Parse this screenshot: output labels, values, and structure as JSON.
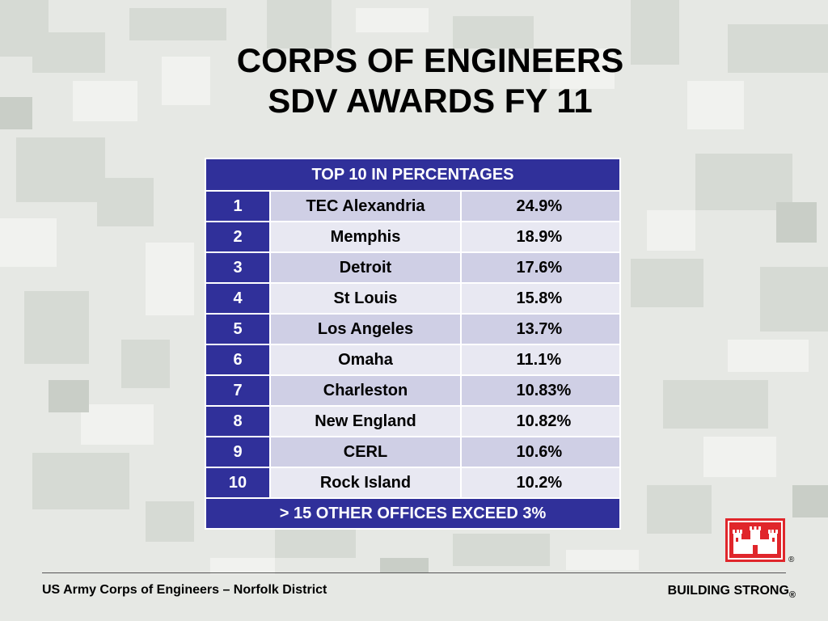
{
  "slide": {
    "title_line1": "CORPS OF ENGINEERS",
    "title_line2": "SDV AWARDS FY 11"
  },
  "table": {
    "header": "TOP 10 IN PERCENTAGES",
    "rows": [
      {
        "rank": "1",
        "name": "TEC Alexandria",
        "pct": "24.9%"
      },
      {
        "rank": "2",
        "name": "Memphis",
        "pct": "18.9%"
      },
      {
        "rank": "3",
        "name": "Detroit",
        "pct": "17.6%"
      },
      {
        "rank": "4",
        "name": "St Louis",
        "pct": "15.8%"
      },
      {
        "rank": "5",
        "name": "Los Angeles",
        "pct": "13.7%"
      },
      {
        "rank": "6",
        "name": "Omaha",
        "pct": "11.1%"
      },
      {
        "rank": "7",
        "name": "Charleston",
        "pct": "10.83%"
      },
      {
        "rank": "8",
        "name": "New England",
        "pct": "10.82%"
      },
      {
        "rank": "9",
        "name": "CERL",
        "pct": "10.6%"
      },
      {
        "rank": "10",
        "name": "Rock Island",
        "pct": "10.2%"
      }
    ],
    "footer": "> 15 OTHER OFFICES EXCEED 3%"
  },
  "footer": {
    "left": "US Army Corps of Engineers – Norfolk District",
    "right": "BUILDING STRONG",
    "registered_mark": "®"
  },
  "colors": {
    "header_blue": "#30309a",
    "row_dark": "#cfcfe5",
    "row_light": "#e8e8f2",
    "logo_red": "#e0262b"
  },
  "icons": {
    "logo": "castle-logo-icon"
  }
}
